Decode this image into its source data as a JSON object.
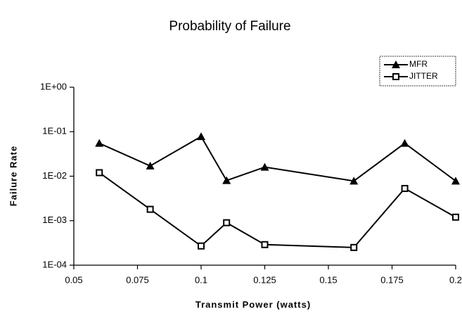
{
  "chart_data": {
    "type": "line",
    "title": "Probability of Failure",
    "xlabel": "Transmit Power (watts)",
    "ylabel": "Failure Rate",
    "x": [
      0.06,
      0.08,
      0.1,
      0.11,
      0.125,
      0.16,
      0.18,
      0.2
    ],
    "series": [
      {
        "name": "MFR",
        "color": "#000000",
        "marker": "triangle",
        "values": [
          0.055,
          0.017,
          0.078,
          0.008,
          0.016,
          0.0078,
          0.055,
          0.0078
        ]
      },
      {
        "name": "JITTER",
        "color": "#000000",
        "marker": "square",
        "values": [
          0.012,
          0.0018,
          0.00027,
          0.0009,
          0.00029,
          0.00025,
          0.0053,
          0.0012
        ]
      }
    ],
    "xlim": [
      0.05,
      0.2
    ],
    "xticks": [
      0.05,
      0.075,
      0.1,
      0.125,
      0.15,
      0.175,
      0.2
    ],
    "ylim": [
      0.0001,
      1
    ],
    "yscale": "log",
    "yticks": [
      {
        "value": 0.0001,
        "label": "1E-04"
      },
      {
        "value": 0.001,
        "label": "1E-03"
      },
      {
        "value": 0.01,
        "label": "1E-02"
      },
      {
        "value": 0.1,
        "label": "1E-01"
      },
      {
        "value": 1,
        "label": "1E+00"
      }
    ],
    "legend": "upper right"
  }
}
